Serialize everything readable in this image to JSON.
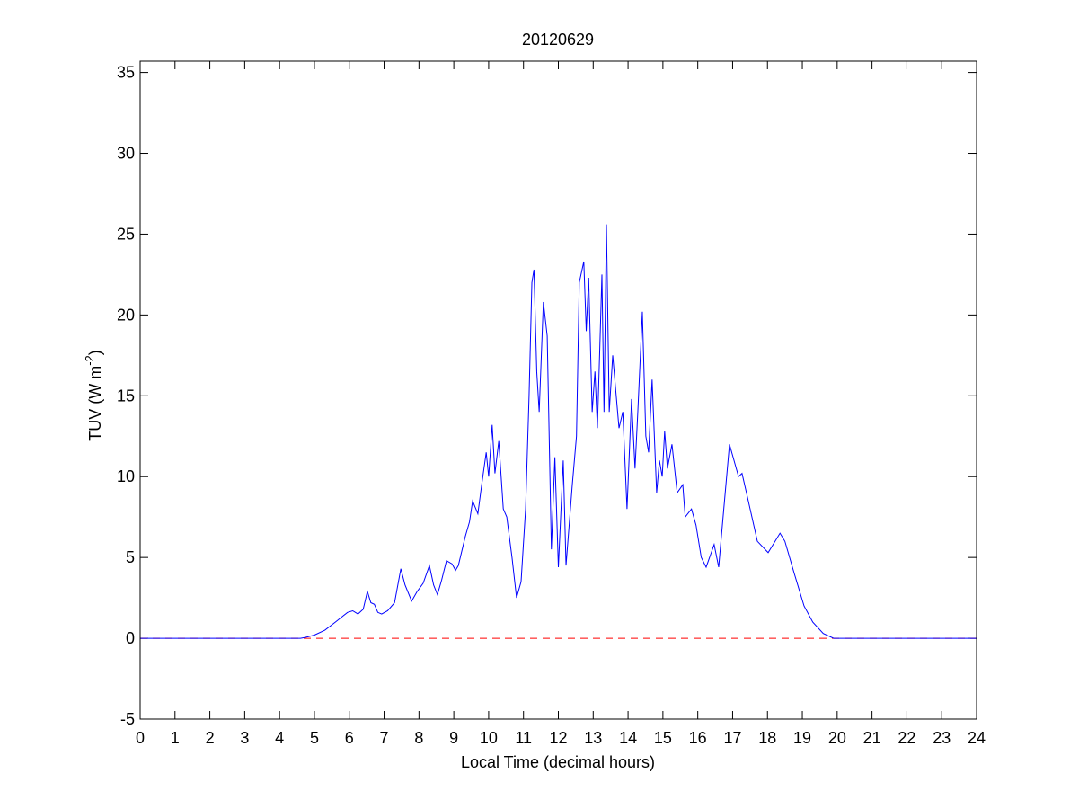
{
  "chart_data": {
    "type": "line",
    "title": "20120629",
    "xlabel": "Local Time (decimal hours)",
    "ylabel": {
      "main": "TUV (W m",
      "superscript": "-2",
      "end": ")"
    },
    "x": [
      0,
      4.6,
      4.74,
      5.0,
      5.3,
      5.6,
      5.95,
      6.1,
      6.25,
      6.4,
      6.52,
      6.62,
      6.72,
      6.82,
      6.93,
      7.1,
      7.3,
      7.48,
      7.6,
      7.79,
      7.95,
      8.12,
      8.3,
      8.42,
      8.53,
      8.65,
      8.79,
      8.95,
      9.05,
      9.13,
      9.33,
      9.45,
      9.54,
      9.69,
      9.8,
      9.93,
      10.0,
      10.1,
      10.18,
      10.29,
      10.42,
      10.52,
      10.67,
      10.8,
      10.93,
      11.06,
      11.16,
      11.24,
      11.3,
      11.38,
      11.45,
      11.57,
      11.68,
      11.8,
      11.9,
      12.0,
      12.14,
      12.22,
      12.4,
      12.52,
      12.6,
      12.73,
      12.8,
      12.87,
      12.97,
      13.05,
      13.12,
      13.19,
      13.25,
      13.31,
      13.38,
      13.46,
      13.56,
      13.74,
      13.85,
      13.97,
      14.1,
      14.2,
      14.28,
      14.41,
      14.51,
      14.59,
      14.69,
      14.82,
      14.9,
      14.98,
      15.05,
      15.13,
      15.26,
      15.41,
      15.57,
      15.64,
      15.82,
      15.95,
      16.1,
      16.24,
      16.47,
      16.6,
      16.91,
      17.17,
      17.27,
      17.45,
      17.71,
      18.02,
      18.36,
      18.5,
      18.77,
      19.05,
      19.3,
      19.6,
      19.9,
      24
    ],
    "series": [
      {
        "name": "TUV",
        "color": "#0000ff",
        "values": [
          0,
          0,
          0.05,
          0.2,
          0.5,
          1.0,
          1.6,
          1.7,
          1.5,
          1.8,
          2.9,
          2.2,
          2.1,
          1.6,
          1.5,
          1.7,
          2.2,
          4.3,
          3.3,
          2.3,
          2.9,
          3.4,
          4.5,
          3.3,
          2.7,
          3.6,
          4.8,
          4.6,
          4.2,
          4.5,
          6.3,
          7.2,
          8.5,
          7.7,
          9.5,
          11.5,
          10.0,
          13.2,
          10.2,
          12.2,
          8.0,
          7.5,
          5.0,
          2.5,
          3.5,
          8.0,
          15.0,
          22.0,
          22.8,
          16.5,
          14.0,
          20.8,
          18.7,
          5.5,
          11.2,
          4.4,
          11.0,
          4.5,
          9.5,
          12.5,
          22.0,
          23.3,
          19.0,
          22.3,
          14.0,
          16.5,
          13.0,
          18.0,
          22.5,
          14.0,
          25.6,
          14.0,
          17.5,
          13.0,
          14.0,
          8.0,
          14.8,
          10.5,
          14.0,
          20.2,
          12.5,
          11.5,
          16.0,
          9.0,
          11.0,
          10.0,
          12.8,
          10.5,
          12.0,
          9.0,
          9.5,
          7.5,
          8.0,
          7.0,
          5.0,
          4.4,
          5.8,
          4.4,
          12.0,
          10.0,
          10.2,
          8.5,
          6.0,
          5.3,
          6.5,
          6.0,
          4.0,
          2.0,
          1.0,
          0.3,
          0,
          0
        ]
      }
    ],
    "reference_line": {
      "value": 0,
      "color": "#ff0000",
      "style": "dashed"
    },
    "xlim": [
      0,
      24
    ],
    "xticks": [
      0,
      1,
      2,
      3,
      4,
      5,
      6,
      7,
      8,
      9,
      10,
      11,
      12,
      13,
      14,
      15,
      16,
      17,
      18,
      19,
      20,
      21,
      22,
      23,
      24
    ],
    "ylim": [
      -5,
      35.7
    ],
    "yticks": [
      -5,
      0,
      5,
      10,
      15,
      20,
      25,
      30,
      35
    ]
  }
}
